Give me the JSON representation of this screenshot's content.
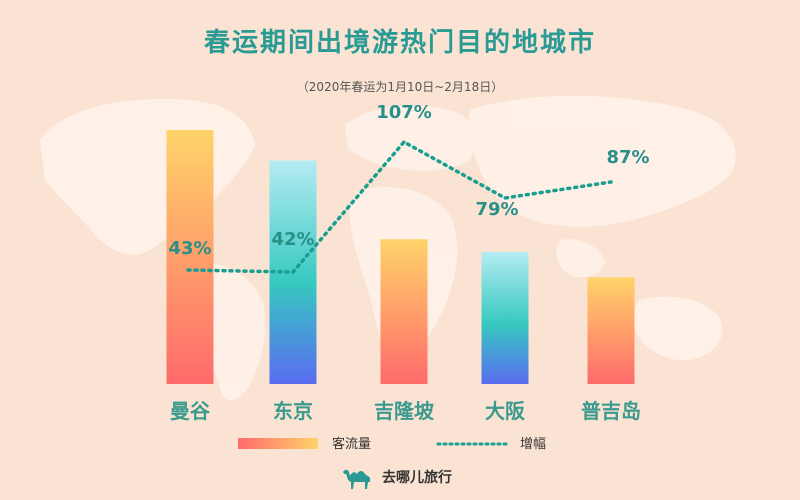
{
  "chart_data": {
    "type": "bar",
    "title": "春运期间出境游热门目的地城市",
    "subtitle": "（2020年春运为1月10日~2月18日）",
    "categories": [
      "曼谷",
      "东京",
      "吉隆坡",
      "大阪",
      "普吉岛"
    ],
    "series": [
      {
        "name": "客流量",
        "type": "bar",
        "values": [
          100,
          88,
          57,
          52,
          42
        ]
      },
      {
        "name": "增幅",
        "type": "line",
        "values": [
          43,
          42,
          107,
          79,
          87
        ],
        "labels": [
          "43%",
          "42%",
          "107%",
          "79%",
          "87%"
        ]
      }
    ],
    "ylim_bar": [
      0,
      100
    ],
    "ylim_line": [
      0,
      120
    ],
    "grid": false,
    "legend": "bottom"
  },
  "brand": {
    "name": "去哪儿旅行",
    "logo_icon": "camel-icon"
  },
  "colors": {
    "background": "#fbe3d3",
    "title": "#2a9a94",
    "line": "#1a9e90",
    "label": "#2a8f88",
    "warm_top": "#ffd36a",
    "warm_bottom": "#ff6b6b",
    "cool_top": "#b4ecf3",
    "cool_mid": "#36c8c0",
    "cool_bottom": "#5a6cf0"
  }
}
